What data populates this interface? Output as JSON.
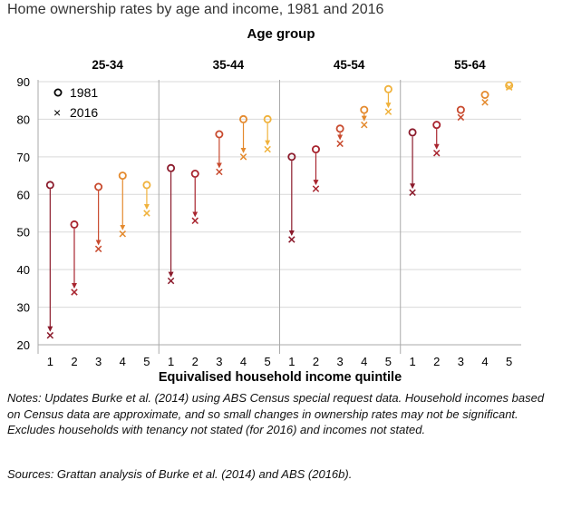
{
  "title": "Home ownership rates by age and income, 1981 and 2016",
  "notes": "Notes: Updates Burke et al. (2014) using ABS Census special request data. Household incomes based on Census data are approximate, and so small changes in ownership rates may not be significant. Excludes households with tenancy not stated (for 2016) and incomes not stated.",
  "sources": "Sources: Grattan analysis of Burke et al. (2014) and ABS (2016b).",
  "chart_data": {
    "type": "scatter",
    "title": "Home ownership rates by age and income, 1981 and 2016",
    "group_label": "Age group",
    "xlabel": "Equivalised household income quintile",
    "ylabel": "",
    "ylim": [
      20,
      90
    ],
    "yticks": [
      20,
      30,
      40,
      50,
      60,
      70,
      80,
      90
    ],
    "grid": true,
    "legend": {
      "placement": "top-left",
      "entries": [
        {
          "symbol": "o",
          "label": "1981"
        },
        {
          "symbol": "×",
          "label": "2016"
        }
      ]
    },
    "quintile_colors": [
      "#8B1A2B",
      "#A8242E",
      "#C84A2E",
      "#E48A2E",
      "#F0B23C"
    ],
    "panels": [
      {
        "label": "25-34",
        "x": [
          "1",
          "2",
          "3",
          "4",
          "5"
        ],
        "series": [
          {
            "name": "1981",
            "values": [
              62.5,
              52,
              62,
              65,
              62.5
            ]
          },
          {
            "name": "2016",
            "values": [
              22.5,
              34,
              45.5,
              49.5,
              55
            ]
          }
        ]
      },
      {
        "label": "35-44",
        "x": [
          "1",
          "2",
          "3",
          "4",
          "5"
        ],
        "series": [
          {
            "name": "1981",
            "values": [
              67,
              65.5,
              76,
              80,
              80
            ]
          },
          {
            "name": "2016",
            "values": [
              37,
              53,
              66,
              70,
              72
            ]
          }
        ]
      },
      {
        "label": "45-54",
        "x": [
          "1",
          "2",
          "3",
          "4",
          "5"
        ],
        "series": [
          {
            "name": "1981",
            "values": [
              70,
              72,
              77.5,
              82.5,
              88
            ]
          },
          {
            "name": "2016",
            "values": [
              48,
              61.5,
              73.5,
              78.5,
              82
            ]
          }
        ]
      },
      {
        "label": "55-64",
        "x": [
          "1",
          "2",
          "3",
          "4",
          "5"
        ],
        "series": [
          {
            "name": "1981",
            "values": [
              76.5,
              78.5,
              82.5,
              86.5,
              89
            ]
          },
          {
            "name": "2016",
            "values": [
              60.5,
              71,
              80.5,
              84.5,
              88.5
            ]
          }
        ]
      }
    ]
  }
}
